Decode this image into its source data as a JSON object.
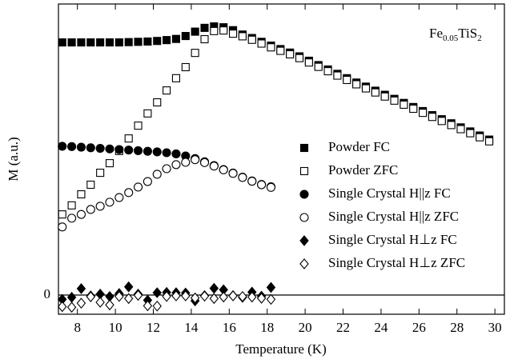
{
  "chart_data": {
    "type": "scatter",
    "xlabel": "Temperature (K)",
    "ylabel": "M (a.u.)",
    "annotation": [
      {
        "text": "Fe",
        "sub": false
      },
      {
        "text": "0.05",
        "sub": true
      },
      {
        "text": "TiS",
        "sub": false
      },
      {
        "text": "2",
        "sub": true
      }
    ],
    "xlim": [
      7,
      30.5
    ],
    "xticks": [
      8,
      10,
      12,
      14,
      16,
      18,
      20,
      22,
      24,
      26,
      28,
      30
    ],
    "ylim": [
      -6.6,
      100
    ],
    "yticks": [
      0
    ],
    "hline": 0,
    "legend": "center right",
    "series": [
      {
        "name": "Powder FC",
        "color": "#000000",
        "marker": "square",
        "filled": true,
        "x": [
          7.2,
          7.7,
          8.2,
          8.7,
          9.2,
          9.7,
          10.2,
          10.7,
          11.2,
          11.7,
          12.2,
          12.7,
          13.2,
          13.7,
          14.2,
          14.7,
          15.2,
          15.7,
          16.2,
          16.7,
          17.2,
          17.7,
          18.2,
          18.7,
          19.2,
          19.7,
          20.2,
          20.7,
          21.2,
          21.7,
          22.2,
          22.7,
          23.2,
          23.7,
          24.2,
          24.7,
          25.2,
          25.7,
          26.2,
          26.7,
          27.2,
          27.7,
          28.2,
          28.7,
          29.2,
          29.7
        ],
        "values": [
          86.8,
          86.8,
          86.8,
          86.8,
          86.8,
          86.8,
          86.8,
          86.9,
          87,
          87.1,
          87.3,
          87.6,
          88,
          89,
          90.5,
          91.8,
          92.3,
          92,
          91,
          89.5,
          88.3,
          87,
          85.7,
          84.5,
          83.3,
          82,
          80.5,
          79,
          77.5,
          76,
          74.5,
          73,
          71.6,
          70.2,
          68.8,
          67.4,
          66,
          64.6,
          63.2,
          61.8,
          60.4,
          59,
          57.6,
          56.2,
          54.8,
          53.4
        ]
      },
      {
        "name": "Powder ZFC",
        "color": "#000000",
        "marker": "square",
        "filled": false,
        "x": [
          7.2,
          7.7,
          8.2,
          8.7,
          9.2,
          9.7,
          10.2,
          10.7,
          11.2,
          11.7,
          12.2,
          12.7,
          13.2,
          13.7,
          14.2,
          14.7,
          15.2,
          15.7,
          16.2,
          16.7,
          17.2,
          17.7,
          18.2,
          18.7,
          19.2,
          19.7,
          20.2,
          20.7,
          21.2,
          21.7,
          22.2,
          22.7,
          23.2,
          23.7,
          24.2,
          24.7,
          25.2,
          25.7,
          26.2,
          26.7,
          27.2,
          27.7,
          28.2,
          28.7,
          29.2,
          29.7
        ],
        "values": [
          27.7,
          30.8,
          34.6,
          37.9,
          42,
          45.3,
          49.5,
          53.8,
          58.2,
          62.4,
          66.2,
          70.3,
          74.5,
          78.3,
          83.2,
          87.9,
          90.7,
          90.9,
          89.8,
          88.9,
          87.7,
          86.4,
          85.1,
          83.9,
          82.7,
          81.4,
          79.9,
          78.4,
          76.9,
          75.4,
          73.9,
          72.4,
          71,
          69.6,
          68.2,
          66.8,
          65.4,
          64,
          62.6,
          61.2,
          59.8,
          58.4,
          57,
          55.6,
          54.2,
          52.8
        ]
      },
      {
        "name": "Single Crystal H||z FC",
        "color": "#000000",
        "marker": "circle",
        "filled": true,
        "x": [
          7.2,
          7.7,
          8.2,
          8.7,
          9.2,
          9.7,
          10.2,
          10.7,
          11.2,
          11.7,
          12.2,
          12.7,
          13.2,
          13.7,
          14.2,
          14.7,
          15.2,
          15.7,
          16.2,
          16.7,
          17.2,
          17.7,
          18.2
        ],
        "values": [
          51.1,
          51,
          50.8,
          50.6,
          50.4,
          50.2,
          50,
          49.8,
          49.6,
          49.4,
          49.2,
          48.9,
          48.5,
          47.8,
          46.9,
          45.8,
          44.5,
          43.1,
          41.9,
          40.5,
          39.2,
          38,
          37.2
        ]
      },
      {
        "name": "Single Crystal H||z ZFC",
        "color": "#000000",
        "marker": "circle",
        "filled": false,
        "x": [
          7.2,
          7.7,
          8.2,
          8.7,
          9.2,
          9.7,
          10.2,
          10.7,
          11.2,
          11.7,
          12.2,
          12.7,
          13.2,
          13.7,
          14.2,
          14.7,
          15.2,
          15.7,
          16.2,
          16.7,
          17.2,
          17.7,
          18.2
        ],
        "values": [
          23.4,
          26.4,
          27.7,
          29.4,
          30.5,
          31.9,
          33.5,
          35.2,
          37.1,
          39,
          41.5,
          43.4,
          44.8,
          45.6,
          46.5,
          45.5,
          44.3,
          43,
          41.8,
          40.4,
          39.1,
          37.9,
          37
        ]
      },
      {
        "name": "Single Crystal H⊥z FC",
        "color": "#000000",
        "marker": "diamond",
        "filled": true,
        "x": [
          7.2,
          7.7,
          8.2,
          8.7,
          9.2,
          9.7,
          10.2,
          10.7,
          11.2,
          11.7,
          12.2,
          12.7,
          13.2,
          13.7,
          14.2,
          14.7,
          15.2,
          15.7,
          16.2,
          16.7,
          17.2,
          17.7,
          18.2
        ],
        "values": [
          -1.5,
          -0.8,
          2.2,
          -0.3,
          0.3,
          -0.5,
          0.5,
          2.8,
          0.3,
          -1.8,
          0.8,
          0.9,
          0.8,
          0.7,
          -2,
          -0.2,
          2.3,
          1.8,
          -0.2,
          -0.8,
          1,
          -0.4,
          2.6
        ]
      },
      {
        "name": "Single Crystal H⊥z ZFC",
        "color": "#000000",
        "marker": "diamond",
        "filled": false,
        "x": [
          7.2,
          7.7,
          8.2,
          8.7,
          9.2,
          9.7,
          10.2,
          10.7,
          11.2,
          11.7,
          12.2,
          12.7,
          13.2,
          13.7,
          14.2,
          14.7,
          15.2,
          15.7,
          16.2,
          16.7,
          17.2,
          17.7,
          18.2
        ],
        "values": [
          -4,
          -4.2,
          -2.8,
          -0.6,
          -2.5,
          -3.4,
          -0.5,
          -1.2,
          -0.1,
          -3.7,
          -3.8,
          -0.5,
          -0.3,
          -0.3,
          -1,
          -0.4,
          -1.2,
          -0.7,
          -0.3,
          -0.5,
          -0.7,
          -1.1,
          -1.5
        ]
      }
    ]
  }
}
